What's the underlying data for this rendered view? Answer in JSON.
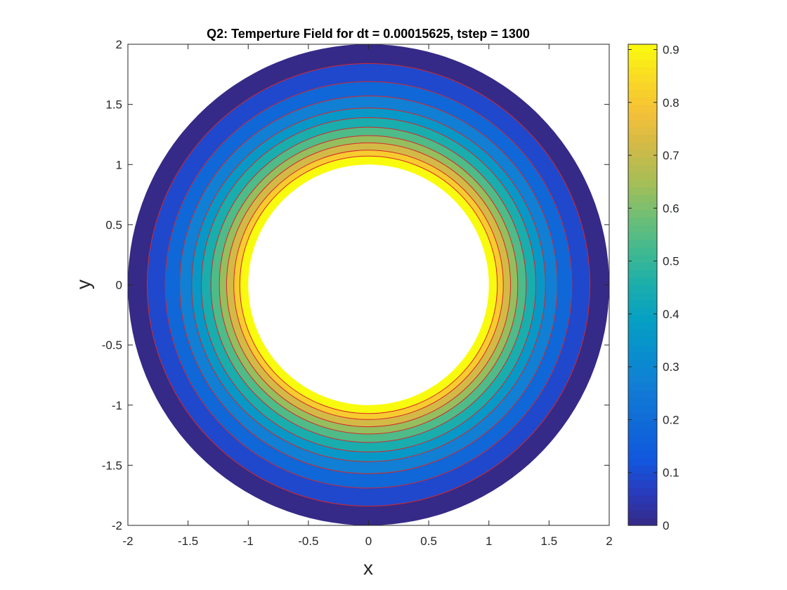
{
  "chart_data": {
    "type": "heatmap",
    "subtype": "filled-contour",
    "title": "Q2: Temperture Field for dt = 0.00015625, tstep = 1300",
    "xlabel": "x",
    "ylabel": "y",
    "xlim": [
      -2,
      2
    ],
    "ylim": [
      -2,
      2
    ],
    "x_ticks": [
      "-2",
      "-1.5",
      "-1",
      "-0.5",
      "0",
      "0.5",
      "1",
      "1.5",
      "2"
    ],
    "y_ticks": [
      "2",
      "1.5",
      "1",
      "0.5",
      "0",
      "-0.5",
      "-1",
      "-1.5",
      "-2"
    ],
    "x_tick_values": [
      -2,
      -1.5,
      -1,
      -0.5,
      0,
      0.5,
      1,
      1.5,
      2
    ],
    "y_tick_values": [
      2,
      1.5,
      1,
      0.5,
      0,
      -0.5,
      -1,
      -1.5,
      -2
    ],
    "domain": {
      "inner_radius": 1.0,
      "outer_radius": 2.0
    },
    "contour_line_color": "#d62728",
    "contour_bands": [
      {
        "r_outer": 2.0,
        "r_inner": 1.84,
        "value": 0.0
      },
      {
        "r_outer": 1.84,
        "r_inner": 1.69,
        "value": 0.09
      },
      {
        "r_outer": 1.69,
        "r_inner": 1.57,
        "value": 0.18
      },
      {
        "r_outer": 1.57,
        "r_inner": 1.47,
        "value": 0.27
      },
      {
        "r_outer": 1.47,
        "r_inner": 1.39,
        "value": 0.36
      },
      {
        "r_outer": 1.39,
        "r_inner": 1.31,
        "value": 0.45
      },
      {
        "r_outer": 1.31,
        "r_inner": 1.24,
        "value": 0.54
      },
      {
        "r_outer": 1.24,
        "r_inner": 1.18,
        "value": 0.63
      },
      {
        "r_outer": 1.18,
        "r_inner": 1.12,
        "value": 0.72
      },
      {
        "r_outer": 1.12,
        "r_inner": 1.07,
        "value": 0.81
      },
      {
        "r_outer": 1.07,
        "r_inner": 1.0,
        "value": 0.91
      }
    ],
    "colorbar": {
      "colormap": "parula",
      "range": [
        0,
        0.91
      ],
      "ticks": [
        "0",
        "0.1",
        "0.2",
        "0.3",
        "0.4",
        "0.5",
        "0.6",
        "0.7",
        "0.8",
        "0.9"
      ],
      "tick_values": [
        0,
        0.1,
        0.2,
        0.3,
        0.4,
        0.5,
        0.6,
        0.7,
        0.8,
        0.9
      ]
    }
  }
}
